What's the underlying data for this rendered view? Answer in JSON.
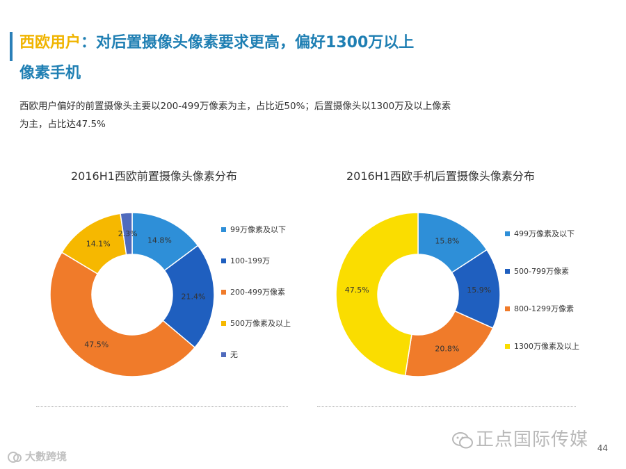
{
  "slide": {
    "title_highlight": "西欧用户",
    "title_rest": "：对后置摄像头像素要求更高，偏好1300万以上",
    "title_line2": "像素手机",
    "description_line1": "西欧用户偏好的前置摄像头主要以200-499万像素为主，占比近50%；后置摄像头以1300万及以上像素",
    "description_line2": "为主，占比达47.5%",
    "page_number": "44",
    "watermark_main": "正点国际传媒",
    "watermark_corner": "大數跨境"
  },
  "colors": {
    "accent": "#2a7fb8",
    "title": "#1f7fb3",
    "highlight": "#f0b400"
  },
  "chart_data": [
    {
      "type": "pie",
      "donut": true,
      "title": "2016H1西欧前置摄像头像素分布",
      "categories": [
        "99万像素及以下",
        "100-199万",
        "200-499万像素",
        "500万像素及以上",
        "无"
      ],
      "values": [
        14.8,
        21.4,
        47.5,
        14.1,
        2.3
      ],
      "labels": [
        "14.8%",
        "21.4%",
        "47.5%",
        "14.1%",
        "2.3%"
      ],
      "colors": [
        "#2e8fd8",
        "#1f5fbf",
        "#f07b2a",
        "#f6b800",
        "#4f6bbd"
      ],
      "legend_position": "right"
    },
    {
      "type": "pie",
      "donut": true,
      "title": "2016H1西欧手机后置摄像头像素分布",
      "categories": [
        "499万像素及以下",
        "500-799万像素",
        "800-1299万像素",
        "1300万像素及以上"
      ],
      "values": [
        15.8,
        15.9,
        20.8,
        47.5
      ],
      "labels": [
        "15.8%",
        "15.9%",
        "20.8%",
        "47.5%"
      ],
      "colors": [
        "#2e8fd8",
        "#1f5fbf",
        "#f07b2a",
        "#fadd00"
      ],
      "legend_position": "right"
    }
  ]
}
